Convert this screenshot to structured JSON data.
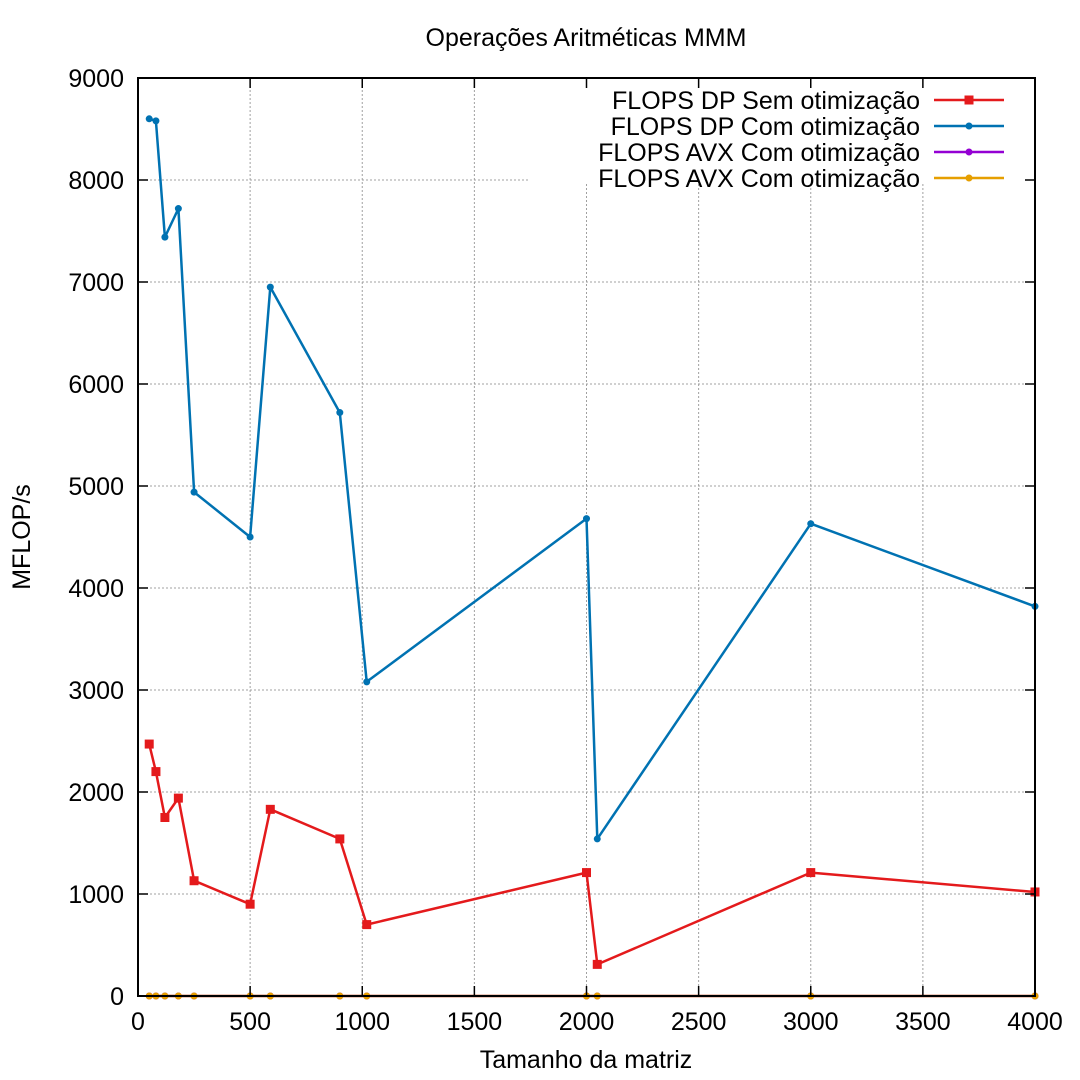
{
  "chart_data": {
    "type": "line",
    "title": "Operações Aritméticas MMM",
    "xlabel": "Tamanho da matriz",
    "ylabel": "MFLOP/s",
    "xlim": [
      0,
      4000
    ],
    "ylim": [
      0,
      9000
    ],
    "xticks": [
      0,
      500,
      1000,
      1500,
      2000,
      2500,
      3000,
      3500,
      4000
    ],
    "yticks": [
      0,
      1000,
      2000,
      3000,
      4000,
      5000,
      6000,
      7000,
      8000,
      9000
    ],
    "grid": true,
    "legend_position": "top-right",
    "x": [
      50,
      80,
      120,
      180,
      250,
      500,
      590,
      900,
      1020,
      2000,
      2048,
      3000,
      4000
    ],
    "series": [
      {
        "name": "FLOPS DP Sem otimização",
        "color": "#e41a1c",
        "marker": "square",
        "values": [
          2470,
          2200,
          1750,
          1940,
          1130,
          900,
          1830,
          1540,
          700,
          1210,
          310,
          1210,
          1020
        ]
      },
      {
        "name": "FLOPS DP Com otimização",
        "color": "#0072b2",
        "marker": "circle",
        "values": [
          8600,
          8580,
          7440,
          7720,
          4940,
          4500,
          6950,
          5720,
          3080,
          4680,
          1540,
          4630,
          3820
        ]
      },
      {
        "name": "FLOPS AVX Com otimização",
        "color": "#9400d3",
        "marker": "circle",
        "values": [
          0,
          0,
          0,
          0,
          0,
          0,
          0,
          0,
          0,
          0,
          0,
          0,
          0
        ]
      },
      {
        "name": "FLOPS AVX Com otimização",
        "color": "#e69f00",
        "marker": "circle",
        "values": [
          0,
          0,
          0,
          0,
          0,
          0,
          0,
          0,
          0,
          0,
          0,
          0,
          0
        ]
      }
    ]
  }
}
